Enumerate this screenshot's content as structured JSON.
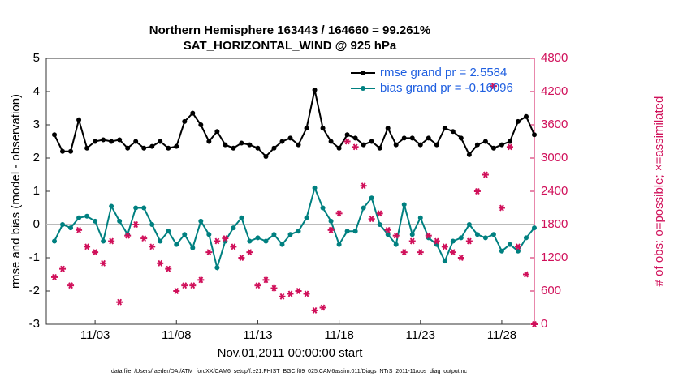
{
  "chart_data": {
    "type": "line",
    "title": "Northern Hemisphere 163443 / 164660 = 99.261%",
    "subtitle": "SAT_HORIZONTAL_WIND @ 925 hPa",
    "xlabel": "Nov.01,2011 00:00:00 start",
    "ylabel": "rmse and bias (model - observation)",
    "y2label": "# of obs: o=possible; ×=assimilated",
    "footnote": "data file: /Users/raeder/DAI/ATM_forcXX/CAM6_setup/f.e21.FHIST_BGC.f09_025.CAM6assim.011/Diags_NTrS_2011-11/obs_diag_output.nc",
    "legend": "upper right",
    "xlim": [
      0,
      30
    ],
    "xticks": [
      {
        "value": 3,
        "label": "11/03"
      },
      {
        "value": 8,
        "label": "11/08"
      },
      {
        "value": 13,
        "label": "11/13"
      },
      {
        "value": 18,
        "label": "11/18"
      },
      {
        "value": 23,
        "label": "11/23"
      },
      {
        "value": 28,
        "label": "11/28"
      }
    ],
    "ylim": [
      -3,
      5
    ],
    "yticks": [
      -3,
      -2,
      -1,
      0,
      1,
      2,
      3,
      4,
      5
    ],
    "y2lim": [
      0,
      4800
    ],
    "y2ticks": [
      0,
      600,
      1200,
      1800,
      2400,
      3000,
      3600,
      4200,
      4800
    ],
    "x": [
      0.5,
      1,
      1.5,
      2,
      2.5,
      3,
      3.5,
      4,
      4.5,
      5,
      5.5,
      6,
      6.5,
      7,
      7.5,
      8,
      8.5,
      9,
      9.5,
      10,
      10.5,
      11,
      11.5,
      12,
      12.5,
      13,
      13.5,
      14,
      14.5,
      15,
      15.5,
      16,
      16.5,
      17,
      17.5,
      18,
      18.5,
      19,
      19.5,
      20,
      20.5,
      21,
      21.5,
      22,
      22.5,
      23,
      23.5,
      24,
      24.5,
      25,
      25.5,
      26,
      26.5,
      27,
      27.5,
      28,
      28.5,
      29,
      29.5,
      30
    ],
    "series": [
      {
        "name": "rmse grand pr = 2.5584",
        "color": "#000000",
        "marker": "dot",
        "values": [
          2.7,
          2.2,
          2.2,
          3.15,
          2.3,
          2.5,
          2.55,
          2.5,
          2.55,
          2.3,
          2.5,
          2.3,
          2.35,
          2.5,
          2.3,
          2.35,
          3.1,
          3.35,
          3.0,
          2.5,
          2.8,
          2.4,
          2.3,
          2.45,
          2.4,
          2.3,
          2.05,
          2.3,
          2.5,
          2.6,
          2.4,
          2.9,
          4.05,
          2.9,
          2.5,
          2.3,
          2.7,
          2.6,
          2.4,
          2.5,
          2.3,
          2.9,
          2.4,
          2.6,
          2.6,
          2.4,
          2.6,
          2.4,
          2.9,
          2.8,
          2.6,
          2.1,
          2.4,
          2.5,
          2.3,
          2.4,
          2.5,
          3.1,
          3.25,
          2.7
        ]
      },
      {
        "name": "bias grand pr = -0.16096",
        "color": "#008080",
        "marker": "dot",
        "values": [
          -0.5,
          0.0,
          -0.1,
          0.2,
          0.25,
          0.1,
          -0.5,
          0.55,
          0.1,
          -0.3,
          0.5,
          0.5,
          0.0,
          -0.5,
          -0.2,
          -0.6,
          -0.3,
          -0.7,
          0.1,
          -0.3,
          -1.3,
          -0.5,
          -0.1,
          0.2,
          -0.5,
          -0.4,
          -0.5,
          -0.3,
          -0.6,
          -0.3,
          -0.2,
          0.2,
          1.1,
          0.5,
          0.1,
          -0.6,
          -0.2,
          -0.2,
          0.5,
          0.8,
          0.0,
          -0.3,
          -0.6,
          0.6,
          -0.3,
          0.2,
          -0.4,
          -0.6,
          -1.1,
          -0.5,
          -0.4,
          0.0,
          -0.3,
          -0.4,
          -0.3,
          -0.8,
          -0.6,
          -0.8,
          -0.4,
          -0.1
        ]
      },
      {
        "color": "#d0105a",
        "marker": "asterisk",
        "axis": "y2",
        "values": [
          850,
          1000,
          700,
          1700,
          1400,
          1300,
          1100,
          1500,
          400,
          1600,
          1800,
          1550,
          1400,
          1100,
          1000,
          600,
          700,
          700,
          800,
          1300,
          1500,
          1550,
          1400,
          1200,
          1300,
          700,
          800,
          650,
          500,
          550,
          600,
          550,
          250,
          300,
          1700,
          2000,
          3300,
          3200,
          2500,
          1900,
          2000,
          1700,
          1600,
          1300,
          1500,
          1300,
          1600,
          1500,
          1400,
          1300,
          1200,
          1500,
          2400,
          2700,
          4300,
          2100,
          3200,
          1400,
          900,
          0
        ]
      }
    ],
    "zero_line": true,
    "y2color": "#d0105a",
    "legend_text_color": "#1f5fe0"
  }
}
